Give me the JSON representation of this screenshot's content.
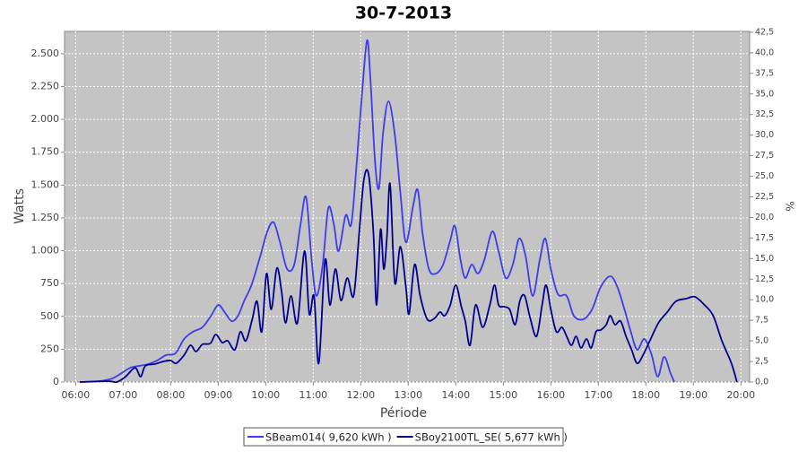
{
  "chart_data": {
    "type": "line",
    "title": "30-7-2013",
    "xlabel": "Période",
    "ylabel": "Watts",
    "y2label": "%",
    "xlim": [
      "05:46",
      "20:11"
    ],
    "xticks": [
      "06:00",
      "07:00",
      "08:00",
      "09:00",
      "10:00",
      "11:00",
      "12:00",
      "13:00",
      "14:00",
      "15:00",
      "16:00",
      "17:00",
      "18:00",
      "19:00",
      "20:00"
    ],
    "ylim": [
      0,
      2670
    ],
    "yticks": [
      0,
      250,
      500,
      750,
      {
        "value": 1000,
        "label": "1.000"
      },
      {
        "value": 1250,
        "label": "1.250"
      },
      {
        "value": 1500,
        "label": "1.500"
      },
      {
        "value": 1750,
        "label": "1.750"
      },
      {
        "value": 2000,
        "label": "2.000"
      },
      {
        "value": 2250,
        "label": "2.250"
      },
      {
        "value": 2500,
        "label": "2.500"
      }
    ],
    "y2lim": [
      0,
      42.6
    ],
    "y2ticks": [
      {
        "value": 0,
        "label": "0,0"
      },
      {
        "value": 2.5,
        "label": "2,5"
      },
      {
        "value": 5,
        "label": "5,0"
      },
      {
        "value": 7.5,
        "label": "7,5"
      },
      {
        "value": 10,
        "label": "10,0"
      },
      {
        "value": 12.5,
        "label": "12,5"
      },
      {
        "value": 15,
        "label": "15,0"
      },
      {
        "value": 17.5,
        "label": "17,5"
      },
      {
        "value": 20,
        "label": "20,0"
      },
      {
        "value": 22.5,
        "label": "22,5"
      },
      {
        "value": 25,
        "label": "25,0"
      },
      {
        "value": 27.5,
        "label": "27,5"
      },
      {
        "value": 30,
        "label": "30,0"
      },
      {
        "value": 32.5,
        "label": "32,5"
      },
      {
        "value": 35,
        "label": "35,0"
      },
      {
        "value": 37.5,
        "label": "37,5"
      },
      {
        "value": 40,
        "label": "40,0"
      },
      {
        "value": 42.5,
        "label": "42,5"
      }
    ],
    "grid": true,
    "series": [
      {
        "name": "SBeam014( 9,620 kWh )",
        "color": "#3c3cf0",
        "x": [
          "06:05",
          "06:29",
          "06:46",
          "06:58",
          "07:09",
          "07:20",
          "07:32",
          "07:43",
          "07:54",
          "08:06",
          "08:17",
          "08:28",
          "08:40",
          "08:51",
          "09:00",
          "09:08",
          "09:17",
          "09:25",
          "09:33",
          "09:42",
          "09:53",
          "10:02",
          "10:10",
          "10:18",
          "10:27",
          "10:36",
          "10:44",
          "10:51",
          "10:58",
          "11:04",
          "11:12",
          "11:19",
          "11:26",
          "11:32",
          "11:41",
          "11:48",
          "11:55",
          "12:02",
          "12:08",
          "12:12",
          "12:18",
          "12:23",
          "12:28",
          "12:35",
          "12:43",
          "12:50",
          "12:57",
          "13:06",
          "13:12",
          "13:18",
          "13:26",
          "13:35",
          "13:44",
          "13:53",
          "13:59",
          "14:06",
          "14:12",
          "14:20",
          "14:28",
          "14:36",
          "14:46",
          "14:54",
          "15:03",
          "15:12",
          "15:20",
          "15:28",
          "15:37",
          "15:46",
          "15:53",
          "16:00",
          "16:09",
          "16:20",
          "16:29",
          "16:41",
          "16:52",
          "17:03",
          "17:15",
          "17:24",
          "17:33",
          "17:41",
          "17:49",
          "17:58",
          "18:07",
          "18:15",
          "18:23",
          "18:31",
          "18:36"
        ],
        "values": [
          0,
          7,
          27,
          68,
          109,
          123,
          137,
          164,
          205,
          219,
          328,
          383,
          417,
          505,
          587,
          533,
          464,
          505,
          621,
          738,
          956,
          1147,
          1216,
          1065,
          861,
          895,
          1202,
          1407,
          929,
          656,
          895,
          1325,
          1202,
          997,
          1270,
          1202,
          1680,
          2227,
          2602,
          2329,
          1680,
          1475,
          1885,
          2138,
          1885,
          1441,
          1065,
          1339,
          1462,
          1134,
          861,
          826,
          895,
          1079,
          1188,
          929,
          792,
          895,
          826,
          929,
          1147,
          997,
          792,
          895,
          1093,
          963,
          656,
          929,
          1093,
          861,
          669,
          656,
          505,
          478,
          553,
          724,
          806,
          724,
          553,
          383,
          246,
          328,
          212,
          41,
          191,
          68,
          0
        ]
      },
      {
        "name": "SBoy2100TL_SE( 5,677 kWh )",
        "color": "#000090",
        "x": [
          "06:05",
          "06:41",
          "06:52",
          "07:03",
          "07:15",
          "07:22",
          "07:28",
          "07:40",
          "07:51",
          "08:00",
          "08:07",
          "08:17",
          "08:25",
          "08:32",
          "08:40",
          "08:50",
          "08:57",
          "09:05",
          "09:12",
          "09:21",
          "09:28",
          "09:35",
          "09:43",
          "09:49",
          "09:55",
          "10:01",
          "10:07",
          "10:14",
          "10:20",
          "10:25",
          "10:32",
          "10:40",
          "10:49",
          "10:55",
          "11:01",
          "11:07",
          "11:15",
          "11:21",
          "11:28",
          "11:35",
          "11:43",
          "11:51",
          "11:58",
          "12:04",
          "12:10",
          "12:16",
          "12:20",
          "12:25",
          "12:29",
          "12:33",
          "12:37",
          "12:43",
          "12:50",
          "12:57",
          "13:01",
          "13:08",
          "13:15",
          "13:24",
          "13:33",
          "13:40",
          "13:46",
          "13:53",
          "14:00",
          "14:07",
          "14:12",
          "14:18",
          "14:25",
          "14:34",
          "14:43",
          "14:49",
          "14:54",
          "15:01",
          "15:08",
          "15:15",
          "15:21",
          "15:27",
          "15:34",
          "15:42",
          "15:49",
          "15:54",
          "16:00",
          "16:07",
          "16:14",
          "16:20",
          "16:26",
          "16:32",
          "16:38",
          "16:45",
          "16:51",
          "16:57",
          "17:03",
          "17:10",
          "17:15",
          "17:21",
          "17:28",
          "17:35",
          "17:42",
          "17:49",
          "17:57",
          "18:05",
          "18:16",
          "18:27",
          "18:38",
          "18:51",
          "19:02",
          "19:14",
          "19:25",
          "19:36",
          "19:48",
          "19:55"
        ],
        "values": [
          0,
          7,
          0,
          41,
          109,
          41,
          123,
          137,
          157,
          164,
          143,
          205,
          280,
          232,
          287,
          294,
          362,
          301,
          314,
          246,
          383,
          314,
          478,
          615,
          383,
          826,
          553,
          867,
          690,
          451,
          656,
          451,
          997,
          519,
          656,
          143,
          929,
          587,
          861,
          621,
          792,
          656,
          1134,
          1543,
          1578,
          1134,
          587,
          1161,
          861,
          1100,
          1509,
          758,
          1031,
          724,
          519,
          895,
          656,
          478,
          485,
          533,
          505,
          587,
          738,
          574,
          464,
          280,
          587,
          417,
          587,
          738,
          587,
          574,
          553,
          437,
          621,
          656,
          485,
          348,
          587,
          738,
          553,
          383,
          417,
          348,
          280,
          348,
          260,
          328,
          260,
          383,
          396,
          437,
          505,
          437,
          464,
          348,
          246,
          143,
          212,
          314,
          451,
          533,
          615,
          635,
          649,
          587,
          505,
          314,
          143,
          0
        ]
      }
    ]
  }
}
